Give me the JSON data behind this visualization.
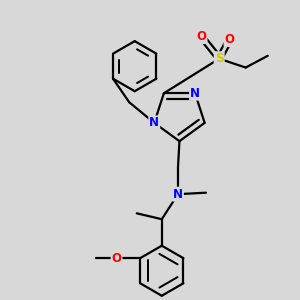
{
  "background_color": "#d8d8d8",
  "atom_colors": {
    "N": "#0000FF",
    "O": "#FF0000",
    "S": "#CCCC00",
    "C": "#000000"
  },
  "bond_color": "#000000",
  "bond_width": 1.6,
  "figsize": [
    3.0,
    3.0
  ],
  "dpi": 100,
  "xlim": [
    0,
    10
  ],
  "ylim": [
    0,
    10
  ]
}
